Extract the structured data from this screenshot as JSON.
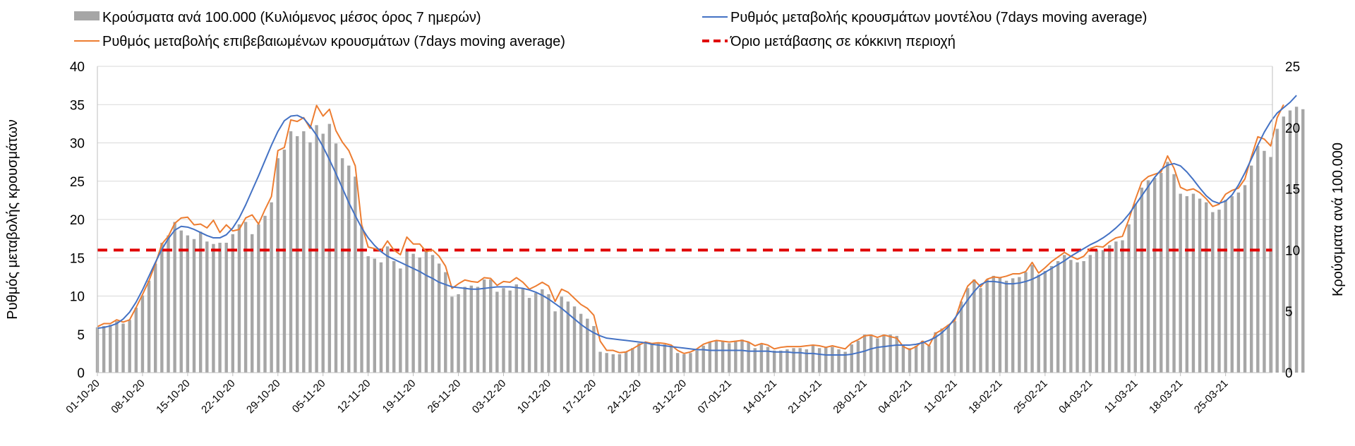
{
  "chart_data": {
    "type": "bar",
    "title": "",
    "ylabel": "Ρυθμός μεταβολής κρουσμάτων",
    "y2label": "Κρούσματα ανά 100.000",
    "ylim": [
      0,
      40
    ],
    "y2lim": [
      0,
      25
    ],
    "yticks": [
      "0",
      "5",
      "10",
      "15",
      "20",
      "25",
      "30",
      "35",
      "40"
    ],
    "y2ticks": [
      "0",
      "5",
      "10",
      "15",
      "20",
      "25"
    ],
    "start_date": "2020-10-01",
    "x_tick_labels": [
      "01-10-20",
      "08-10-20",
      "15-10-20",
      "22-10-20",
      "29-10-20",
      "05-11-20",
      "12-11-20",
      "19-11-20",
      "26-11-20",
      "03-12-20",
      "10-12-20",
      "17-12-20",
      "24-12-20",
      "31-12-20",
      "07-01-21",
      "14-01-21",
      "21-01-21",
      "28-01-21",
      "04-02-21",
      "11-02-21",
      "18-02-21",
      "25-02-21",
      "04-03-21",
      "11-03-21",
      "18-03-21",
      "25-03-21"
    ],
    "grid": true,
    "legend_position": "top",
    "threshold": 16,
    "series": [
      {
        "name": "Κρούσματα ανά 100.000 (Κυλιόμενος μέσος όρος 7 ημερών)",
        "type": "bar",
        "axis": "right",
        "color": "#a6a6a6",
        "values": [
          3.7,
          3.8,
          3.9,
          4.2,
          4.0,
          4.3,
          5.3,
          6.3,
          7.5,
          8.9,
          10.6,
          11.2,
          12.3,
          11.6,
          11.2,
          10.9,
          11.5,
          10.7,
          10.5,
          10.6,
          10.6,
          11.3,
          12.1,
          12.3,
          11.3,
          12.1,
          12.8,
          13.9,
          17.5,
          18.2,
          19.7,
          19.3,
          19.7,
          18.8,
          20.2,
          19.5,
          20.3,
          18.7,
          17.5,
          16.9,
          16.0,
          11.9,
          9.5,
          9.3,
          9.0,
          10.3,
          9.1,
          8.5,
          10.1,
          9.7,
          9.4,
          9.9,
          9.6,
          8.9,
          8.2,
          6.2,
          6.4,
          7.0,
          7.1,
          7.0,
          7.6,
          7.6,
          6.6,
          6.9,
          6.7,
          7.2,
          6.9,
          6.1,
          6.5,
          6.8,
          6.4,
          5.0,
          6.2,
          5.8,
          5.4,
          4.8,
          4.4,
          3.8,
          1.7,
          1.6,
          1.5,
          1.5,
          1.7,
          2.0,
          2.4,
          2.4,
          2.3,
          2.4,
          2.3,
          2.2,
          1.6,
          1.5,
          1.6,
          1.8,
          2.2,
          2.5,
          2.6,
          2.6,
          2.4,
          2.6,
          2.7,
          2.5,
          2.0,
          2.3,
          2.1,
          1.8,
          1.8,
          1.9,
          2.0,
          2.0,
          1.9,
          2.2,
          2.0,
          2.1,
          2.1,
          1.9,
          1.7,
          2.3,
          2.6,
          3.1,
          3.1,
          2.8,
          3.1,
          3.1,
          3.0,
          2.3,
          2.0,
          2.2,
          2.6,
          2.2,
          3.3,
          3.6,
          3.9,
          4.2,
          5.8,
          6.9,
          7.6,
          6.9,
          7.6,
          7.9,
          7.8,
          7.5,
          7.7,
          7.8,
          8.2,
          8.8,
          8.0,
          8.3,
          8.7,
          9.1,
          9.6,
          9.2,
          9.0,
          9.1,
          9.6,
          10.0,
          10.0,
          10.4,
          10.7,
          10.8,
          12.1,
          13.8,
          15.1,
          15.7,
          15.9,
          16.3,
          17.2,
          16.2,
          14.6,
          14.4,
          14.6,
          14.2,
          13.9,
          13.1,
          13.3,
          14.1,
          14.4,
          14.7,
          15.3,
          16.9,
          18.5,
          18.1,
          17.6,
          19.9,
          20.9,
          21.4,
          21.7,
          21.5
        ]
      },
      {
        "name": "Ρυθμός μεταβολής επιβεβαιωμένων κρουσμάτων (7days moving average)",
        "type": "line",
        "axis": "left",
        "color": "#ed7d31",
        "values": [
          6.0,
          6.4,
          6.4,
          6.9,
          6.6,
          6.9,
          8.5,
          10.2,
          12.0,
          14.2,
          16.8,
          17.8,
          19.5,
          20.2,
          20.3,
          19.3,
          19.4,
          18.9,
          19.9,
          18.3,
          19.3,
          18.5,
          18.7,
          20.2,
          20.6,
          19.4,
          21.3,
          23.0,
          29.0,
          29.4,
          33.0,
          32.8,
          33.3,
          31.9,
          34.9,
          33.5,
          34.4,
          31.6,
          30.1,
          29.0,
          27.0,
          19.3,
          16.4,
          16.2,
          15.9,
          17.2,
          16.0,
          15.4,
          17.7,
          16.8,
          16.8,
          15.8,
          16.0,
          15.2,
          13.9,
          11.0,
          11.6,
          12.1,
          11.9,
          11.8,
          12.4,
          12.3,
          11.4,
          11.9,
          11.8,
          12.4,
          11.8,
          10.9,
          11.3,
          11.8,
          11.3,
          9.3,
          10.9,
          10.5,
          9.7,
          8.9,
          8.4,
          7.5,
          4.1,
          2.9,
          2.9,
          2.6,
          2.7,
          3.1,
          3.6,
          4.0,
          3.8,
          3.9,
          3.8,
          3.6,
          2.9,
          2.5,
          2.7,
          3.1,
          3.7,
          4.0,
          4.2,
          4.1,
          4.0,
          4.1,
          4.2,
          4.0,
          3.5,
          3.8,
          3.6,
          3.1,
          3.3,
          3.4,
          3.4,
          3.4,
          3.5,
          3.6,
          3.5,
          3.3,
          3.5,
          3.3,
          3.1,
          3.9,
          4.3,
          4.8,
          4.9,
          4.6,
          4.9,
          4.7,
          4.5,
          3.4,
          3.0,
          3.4,
          4.1,
          3.5,
          5.1,
          5.6,
          6.2,
          6.8,
          9.4,
          11.3,
          12.1,
          11.2,
          12.2,
          12.5,
          12.4,
          12.6,
          12.9,
          12.9,
          13.2,
          14.4,
          13.0,
          13.7,
          14.5,
          15.1,
          15.7,
          15.2,
          14.8,
          15.2,
          16.2,
          16.5,
          16.4,
          17.1,
          17.6,
          17.8,
          20.0,
          22.6,
          24.9,
          25.6,
          25.9,
          26.2,
          28.3,
          26.7,
          24.2,
          23.8,
          24.0,
          23.5,
          22.7,
          21.7,
          22.0,
          23.3,
          23.8,
          24.1,
          25.3,
          28.2,
          30.8,
          30.5,
          29.6,
          33.3,
          35.0
        ]
      },
      {
        "name": "Ρυθμός μεταβολής κρουσμάτων μοντέλου (7days moving average)",
        "type": "line",
        "axis": "left",
        "color": "#4472c4",
        "values": [
          5.8,
          5.9,
          6.1,
          6.4,
          7.0,
          7.9,
          9.2,
          10.8,
          12.6,
          14.4,
          16.1,
          17.5,
          18.6,
          19.1,
          19.0,
          18.7,
          18.3,
          17.9,
          17.6,
          17.6,
          18.0,
          18.9,
          20.2,
          21.9,
          23.8,
          25.7,
          27.7,
          29.7,
          31.5,
          32.9,
          33.5,
          33.6,
          33.2,
          32.2,
          31.0,
          29.5,
          27.8,
          26.0,
          24.1,
          22.2,
          20.5,
          18.9,
          17.6,
          16.6,
          15.8,
          15.2,
          14.8,
          14.4,
          14.0,
          13.6,
          13.2,
          12.7,
          12.3,
          11.8,
          11.5,
          11.2,
          11.1,
          11.0,
          10.9,
          10.9,
          11.0,
          11.1,
          11.2,
          11.2,
          11.2,
          11.1,
          11.0,
          10.8,
          10.5,
          10.1,
          9.6,
          9.0,
          8.4,
          7.7,
          7.0,
          6.3,
          5.7,
          5.2,
          4.8,
          4.5,
          4.4,
          4.3,
          4.2,
          4.1,
          4.0,
          3.9,
          3.7,
          3.6,
          3.5,
          3.4,
          3.3,
          3.2,
          3.1,
          3.0,
          3.0,
          2.9,
          2.9,
          2.9,
          2.9,
          2.9,
          2.9,
          2.8,
          2.8,
          2.8,
          2.8,
          2.7,
          2.7,
          2.7,
          2.6,
          2.6,
          2.5,
          2.5,
          2.4,
          2.3,
          2.3,
          2.3,
          2.3,
          2.4,
          2.6,
          2.8,
          3.1,
          3.3,
          3.4,
          3.5,
          3.6,
          3.6,
          3.6,
          3.7,
          3.9,
          4.2,
          4.6,
          5.2,
          6.0,
          7.1,
          8.3,
          9.5,
          10.6,
          11.5,
          11.9,
          11.9,
          11.8,
          11.6,
          11.6,
          11.7,
          11.9,
          12.2,
          12.6,
          13.1,
          13.6,
          14.1,
          14.6,
          15.2,
          15.7,
          16.2,
          16.7,
          17.1,
          17.6,
          18.2,
          18.9,
          19.7,
          20.7,
          21.9,
          23.1,
          24.3,
          25.5,
          26.5,
          27.1,
          27.3,
          27.0,
          26.2,
          25.2,
          24.1,
          23.1,
          22.4,
          22.1,
          22.4,
          23.2,
          24.5,
          26.1,
          27.9,
          29.7,
          31.4,
          32.8,
          33.9,
          34.6,
          35.3,
          36.2
        ]
      },
      {
        "name": "Όριο μετάβασης σε κόκκινη περιοχή",
        "type": "threshold",
        "axis": "left",
        "color": "#e00000",
        "value": 16
      }
    ]
  }
}
